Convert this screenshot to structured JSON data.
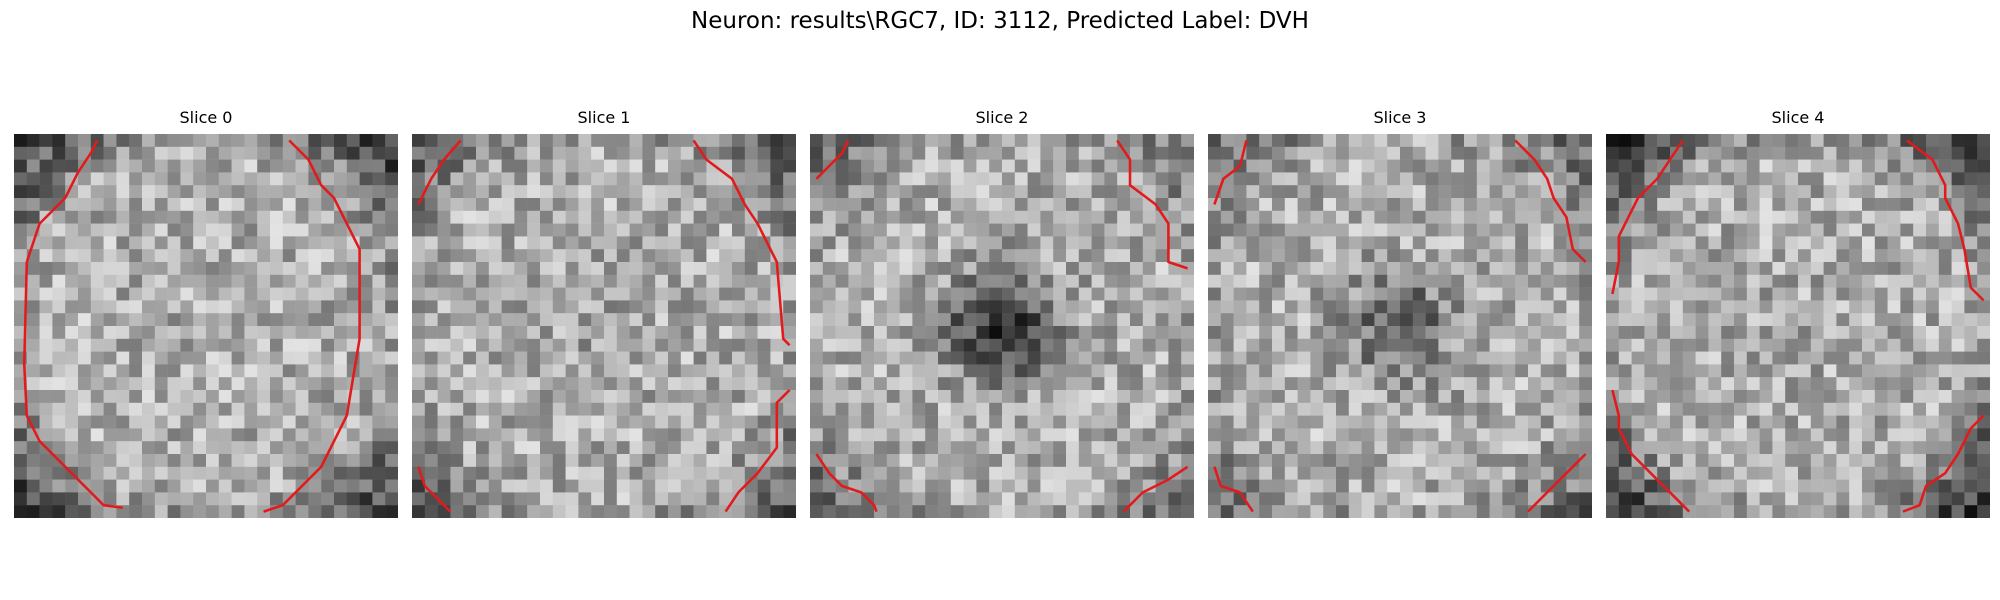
{
  "figure": {
    "title": "Neuron: results\\RGC7, ID: 3112, Predicted Label: DVH",
    "contour_color": "#e31a1c",
    "panels": [
      {
        "label": "Slice 0",
        "seed": 11,
        "dark_center": 0.0,
        "ring": 0.35
      },
      {
        "label": "Slice 1",
        "seed": 23,
        "dark_center": 0.05,
        "ring": 0.25
      },
      {
        "label": "Slice 2",
        "seed": 37,
        "dark_center": 0.55,
        "ring": 0.2
      },
      {
        "label": "Slice 3",
        "seed": 41,
        "dark_center": 0.35,
        "ring": 0.22
      },
      {
        "label": "Slice 4",
        "seed": 53,
        "dark_center": 0.02,
        "ring": 0.38
      }
    ]
  }
}
